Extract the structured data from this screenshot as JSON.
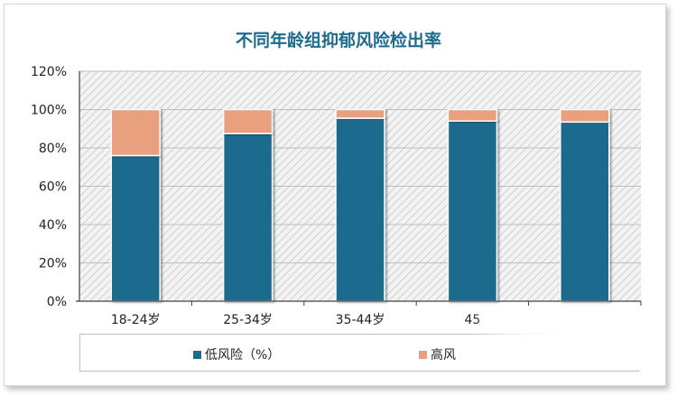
{
  "chart_data": {
    "type": "bar",
    "stacked": true,
    "title": "不同年龄组抑郁风险检出率",
    "categories": [
      "18-24岁",
      "25-34岁",
      "35-44岁",
      "45",
      ""
    ],
    "series": [
      {
        "name": "低风险（%）",
        "color": "#1d6b8e",
        "values": [
          76,
          87.5,
          95.5,
          94,
          93.5
        ]
      },
      {
        "name": "高风",
        "color": "#e9a07f",
        "values": [
          24,
          12.5,
          4.5,
          6,
          6.5
        ]
      }
    ],
    "yticks": [
      "0%",
      "20%",
      "40%",
      "60%",
      "80%",
      "100%",
      "120%"
    ],
    "ylim": [
      0,
      120
    ],
    "grid": true,
    "legend_position": "bottom"
  }
}
